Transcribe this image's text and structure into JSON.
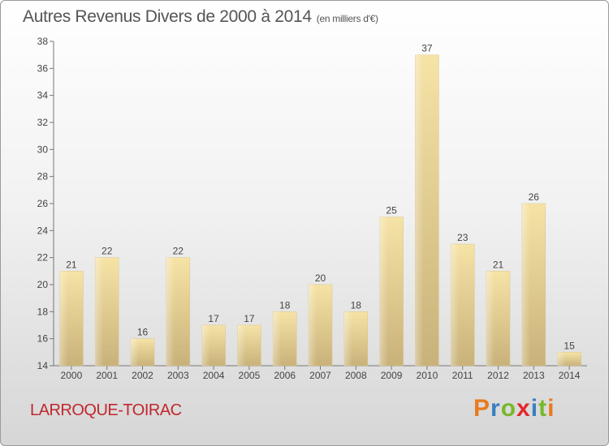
{
  "title": "Autres Revenus Divers de 2000 à 2014",
  "subtitle": "(en milliers d'€)",
  "place": "LARROQUE-TOIRAC",
  "brand": "Proxiti",
  "chart_data": {
    "type": "bar",
    "categories": [
      "2000",
      "2001",
      "2002",
      "2003",
      "2004",
      "2005",
      "2006",
      "2007",
      "2008",
      "2009",
      "2010",
      "2011",
      "2012",
      "2013",
      "2014"
    ],
    "values": [
      21,
      22,
      16,
      22,
      17,
      17,
      18,
      20,
      18,
      25,
      37,
      23,
      21,
      26,
      15
    ],
    "ylim": [
      14,
      38
    ],
    "yticks": [
      14,
      16,
      18,
      20,
      22,
      24,
      26,
      28,
      30,
      32,
      34,
      36,
      38
    ],
    "grid": false,
    "bar_color_light": "#f6e3a6",
    "bar_color_dark": "#c9b27a"
  }
}
